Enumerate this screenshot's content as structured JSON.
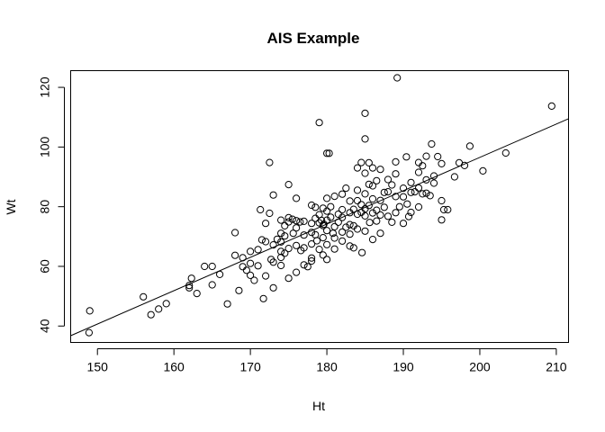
{
  "chart_data": {
    "type": "scatter",
    "title": "AIS Example",
    "xlabel": "Ht",
    "ylabel": "Wt",
    "xlim": [
      146.5,
      211.6
    ],
    "ylim": [
      34.5,
      125.6
    ],
    "xticks": [
      150,
      160,
      170,
      180,
      190,
      200,
      210
    ],
    "yticks": [
      40,
      60,
      80,
      100,
      120
    ],
    "grid": false,
    "legend": "none",
    "fit_line": {
      "intercept": -126.89,
      "slope": 1.1171
    },
    "points": [
      [
        149.0,
        45.1
      ],
      [
        148.9,
        37.8
      ],
      [
        156.0,
        49.8
      ],
      [
        157.0,
        43.8
      ],
      [
        158.0,
        45.7
      ],
      [
        159.0,
        47.5
      ],
      [
        162.0,
        52.8
      ],
      [
        162.0,
        53.6
      ],
      [
        162.3,
        56.0
      ],
      [
        163.0,
        50.9
      ],
      [
        164.0,
        60.0
      ],
      [
        165.0,
        60.0
      ],
      [
        165.0,
        53.8
      ],
      [
        166.0,
        57.3
      ],
      [
        167.0,
        47.4
      ],
      [
        168.0,
        63.7
      ],
      [
        168.0,
        71.3
      ],
      [
        168.5,
        51.9
      ],
      [
        169.0,
        62.9
      ],
      [
        169.0,
        59.9
      ],
      [
        169.5,
        58.7
      ],
      [
        170.0,
        65.0
      ],
      [
        170.0,
        61.0
      ],
      [
        170.0,
        57.0
      ],
      [
        170.5,
        55.3
      ],
      [
        171.0,
        65.6
      ],
      [
        171.0,
        60.2
      ],
      [
        171.3,
        79.0
      ],
      [
        171.5,
        68.9
      ],
      [
        171.7,
        49.2
      ],
      [
        172.0,
        74.4
      ],
      [
        172.0,
        68.3
      ],
      [
        172.0,
        56.8
      ],
      [
        172.5,
        94.8
      ],
      [
        172.5,
        77.8
      ],
      [
        172.7,
        62.3
      ],
      [
        173.0,
        83.9
      ],
      [
        173.0,
        67.2
      ],
      [
        173.0,
        61.4
      ],
      [
        173.0,
        52.8
      ],
      [
        173.5,
        69.1
      ],
      [
        174.0,
        75.5
      ],
      [
        174.0,
        71.1
      ],
      [
        174.0,
        68.2
      ],
      [
        174.0,
        65.0
      ],
      [
        174.0,
        63.0
      ],
      [
        174.0,
        60.3
      ],
      [
        174.5,
        73.6
      ],
      [
        174.5,
        70.2
      ],
      [
        174.5,
        64.4
      ],
      [
        175.0,
        87.4
      ],
      [
        175.0,
        76.3
      ],
      [
        175.0,
        74.9
      ],
      [
        175.0,
        66.0
      ],
      [
        175.0,
        56.0
      ],
      [
        175.5,
        75.8
      ],
      [
        175.6,
        71.1
      ],
      [
        176.0,
        82.8
      ],
      [
        176.0,
        75.3
      ],
      [
        176.0,
        72.9
      ],
      [
        176.0,
        67.0
      ],
      [
        176.0,
        58.0
      ],
      [
        176.5,
        74.9
      ],
      [
        176.6,
        65.3
      ],
      [
        177.0,
        75.1
      ],
      [
        177.0,
        70.5
      ],
      [
        177.0,
        66.2
      ],
      [
        177.0,
        60.5
      ],
      [
        177.5,
        59.9
      ],
      [
        178.0,
        80.5
      ],
      [
        178.0,
        74.4
      ],
      [
        178.0,
        71.4
      ],
      [
        178.0,
        67.5
      ],
      [
        178.0,
        62.8
      ],
      [
        178.0,
        61.8
      ],
      [
        178.5,
        79.8
      ],
      [
        178.5,
        76.1
      ],
      [
        178.5,
        70.6
      ],
      [
        178.7,
        68.6
      ],
      [
        179.0,
        108.2
      ],
      [
        179.0,
        77.3
      ],
      [
        179.0,
        74.6
      ],
      [
        179.0,
        65.7
      ],
      [
        179.3,
        75.4
      ],
      [
        179.5,
        79.5
      ],
      [
        179.5,
        73.7
      ],
      [
        179.5,
        69.6
      ],
      [
        179.5,
        63.8
      ],
      [
        179.6,
        74.1
      ],
      [
        180.0,
        97.9
      ],
      [
        180.0,
        82.8
      ],
      [
        180.0,
        78.5
      ],
      [
        180.0,
        75.5
      ],
      [
        180.0,
        72.0
      ],
      [
        180.0,
        67.3
      ],
      [
        180.0,
        62.3
      ],
      [
        180.3,
        97.9
      ],
      [
        180.5,
        80.0
      ],
      [
        180.5,
        76.5
      ],
      [
        180.8,
        71.1
      ],
      [
        181.0,
        83.5
      ],
      [
        181.0,
        73.3
      ],
      [
        181.0,
        69.5
      ],
      [
        181.0,
        65.8
      ],
      [
        181.5,
        77.5
      ],
      [
        181.5,
        74.8
      ],
      [
        182.0,
        84.2
      ],
      [
        182.0,
        79.0
      ],
      [
        182.0,
        76.4
      ],
      [
        182.0,
        71.5
      ],
      [
        182.0,
        68.5
      ],
      [
        182.5,
        86.2
      ],
      [
        182.5,
        73.1
      ],
      [
        183.0,
        81.9
      ],
      [
        183.0,
        78.0
      ],
      [
        183.0,
        74.0
      ],
      [
        183.0,
        70.8
      ],
      [
        183.0,
        66.8
      ],
      [
        183.5,
        79.1
      ],
      [
        183.5,
        73.6
      ],
      [
        183.5,
        66.2
      ],
      [
        184.0,
        93.0
      ],
      [
        184.0,
        85.5
      ],
      [
        184.0,
        82.0
      ],
      [
        184.0,
        77.5
      ],
      [
        184.0,
        72.5
      ],
      [
        184.5,
        94.8
      ],
      [
        184.5,
        80.7
      ],
      [
        184.5,
        78.1
      ],
      [
        184.6,
        64.6
      ],
      [
        185.0,
        111.3
      ],
      [
        185.0,
        102.7
      ],
      [
        185.0,
        91.2
      ],
      [
        185.0,
        84.3
      ],
      [
        185.0,
        79.3
      ],
      [
        185.0,
        76.9
      ],
      [
        185.0,
        71.8
      ],
      [
        185.5,
        94.7
      ],
      [
        185.5,
        87.5
      ],
      [
        185.5,
        80.4
      ],
      [
        185.6,
        74.7
      ],
      [
        186.0,
        93.0
      ],
      [
        186.0,
        87.0
      ],
      [
        186.0,
        82.6
      ],
      [
        186.0,
        77.9
      ],
      [
        186.0,
        69.0
      ],
      [
        186.5,
        88.7
      ],
      [
        186.5,
        78.8
      ],
      [
        186.5,
        75.2
      ],
      [
        187.0,
        92.5
      ],
      [
        187.0,
        82.1
      ],
      [
        187.0,
        77.2
      ],
      [
        187.0,
        71.1
      ],
      [
        187.5,
        84.8
      ],
      [
        187.5,
        79.8
      ],
      [
        188.0,
        89.1
      ],
      [
        188.0,
        85.0
      ],
      [
        188.0,
        76.8
      ],
      [
        188.5,
        87.3
      ],
      [
        188.5,
        74.8
      ],
      [
        189.0,
        95.0
      ],
      [
        189.0,
        91.0
      ],
      [
        189.0,
        83.4
      ],
      [
        189.0,
        78.0
      ],
      [
        189.2,
        123.2
      ],
      [
        189.5,
        80.0
      ],
      [
        190.0,
        86.2
      ],
      [
        190.0,
        83.3
      ],
      [
        190.0,
        74.4
      ],
      [
        190.4,
        96.7
      ],
      [
        190.5,
        80.9
      ],
      [
        190.7,
        76.7
      ],
      [
        191.0,
        88.1
      ],
      [
        191.0,
        84.8
      ],
      [
        191.0,
        78.1
      ],
      [
        191.5,
        85.0
      ],
      [
        192.0,
        94.8
      ],
      [
        192.0,
        91.5
      ],
      [
        192.0,
        86.3
      ],
      [
        192.0,
        79.9
      ],
      [
        192.5,
        93.7
      ],
      [
        192.5,
        84.3
      ],
      [
        193.0,
        96.9
      ],
      [
        193.0,
        89.0
      ],
      [
        193.0,
        84.5
      ],
      [
        193.5,
        83.7
      ],
      [
        193.7,
        101.0
      ],
      [
        194.0,
        90.3
      ],
      [
        194.0,
        87.9
      ],
      [
        194.5,
        96.8
      ],
      [
        195.0,
        94.4
      ],
      [
        195.0,
        82.0
      ],
      [
        195.0,
        75.6
      ],
      [
        195.3,
        79.0
      ],
      [
        195.8,
        79.0
      ],
      [
        196.7,
        90.0
      ],
      [
        197.3,
        94.7
      ],
      [
        198.0,
        93.8
      ],
      [
        198.7,
        100.3
      ],
      [
        200.4,
        92.0
      ],
      [
        203.4,
        98.0
      ],
      [
        209.4,
        113.7
      ]
    ]
  }
}
